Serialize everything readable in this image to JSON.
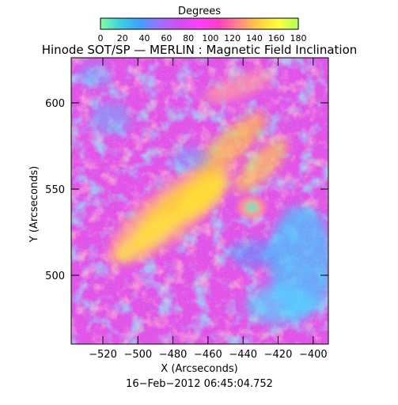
{
  "colorbar": {
    "title": "Degrees",
    "ticks": [
      "0",
      "20",
      "40",
      "60",
      "80",
      "100",
      "120",
      "140",
      "160",
      "180"
    ],
    "stops": [
      "#7fffa0",
      "#3fd0e0",
      "#40a0ff",
      "#a070ff",
      "#d04ff0",
      "#ff40ff",
      "#ff40c0",
      "#ff8a8a",
      "#ffd040",
      "#ffff40",
      "#b0ff60"
    ]
  },
  "title": "Hinode SOT/SP — MERLIN : Magnetic Field Inclination",
  "x_axis": {
    "label": "X (Arcseconds)",
    "ticks": [
      "−520",
      "−500",
      "−480",
      "−460",
      "−440",
      "−420",
      "−400"
    ]
  },
  "y_axis": {
    "label": "Y (Arcseconds)",
    "ticks": [
      "600",
      "550",
      "500"
    ]
  },
  "timestamp": "16−Feb−2012 06:45:04.752",
  "map_colors": {
    "background": "#e050e8",
    "strong_positive": "#ffd030",
    "warm": "#ff8aa0",
    "cool": "#50b8f0",
    "deep": "#9060f0"
  }
}
